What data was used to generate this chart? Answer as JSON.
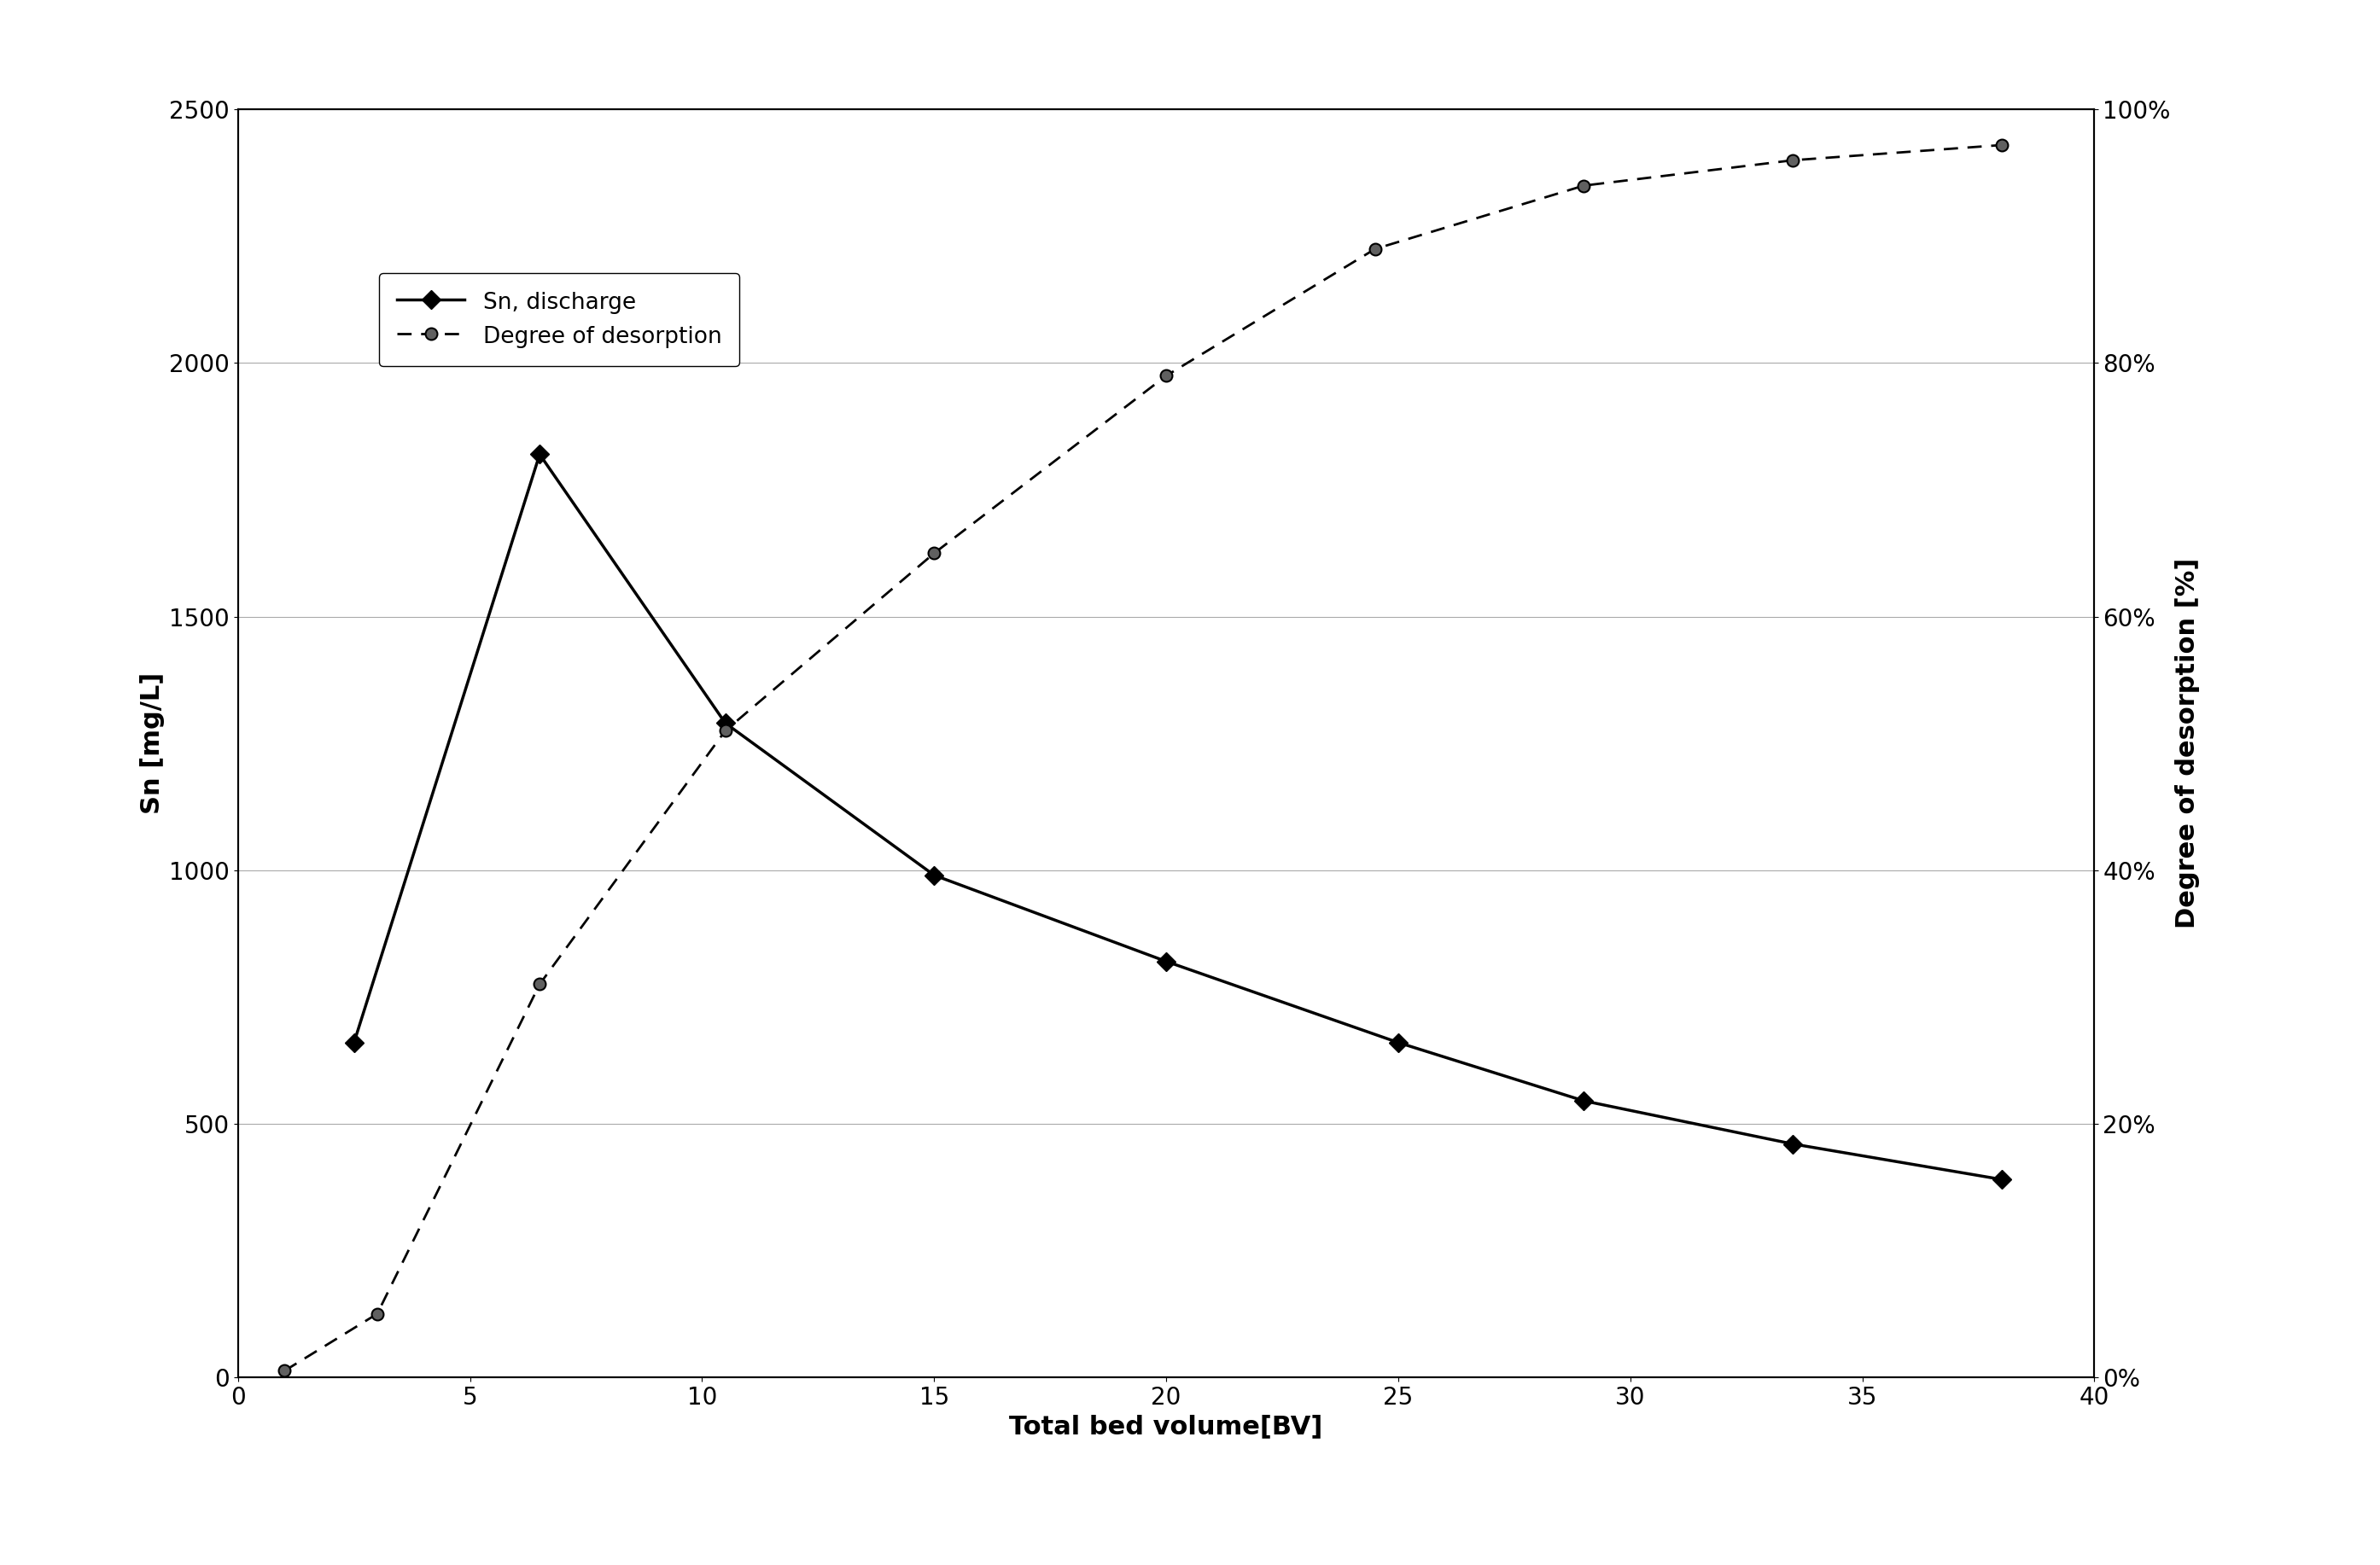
{
  "sn_discharge_x": [
    2.5,
    6.5,
    10.5,
    15,
    20,
    25,
    29,
    33.5,
    38
  ],
  "sn_discharge_y": [
    660,
    1820,
    1290,
    990,
    820,
    660,
    545,
    460,
    390
  ],
  "desorption_x": [
    1,
    3,
    6.5,
    10.5,
    15,
    20,
    24.5,
    29,
    33.5,
    38
  ],
  "desorption_y": [
    0.005,
    0.05,
    0.31,
    0.51,
    0.65,
    0.79,
    0.89,
    0.94,
    0.96,
    0.972
  ],
  "xlabel": "Total bed volume[BV]",
  "ylabel_left": "Sn [mg/L]",
  "ylabel_right": "Degree of desorption [%]",
  "xlim": [
    0,
    40
  ],
  "ylim_left": [
    0,
    2500
  ],
  "ylim_right": [
    0,
    1.0
  ],
  "xticks": [
    0,
    5,
    10,
    15,
    20,
    25,
    30,
    35,
    40
  ],
  "yticks_left": [
    0,
    500,
    1000,
    1500,
    2000,
    2500
  ],
  "yticks_right": [
    0.0,
    0.2,
    0.4,
    0.6,
    0.8,
    1.0
  ],
  "legend_sn": "Sn, discharge",
  "legend_desorption": "Degree of desorption",
  "line_color": "#000000",
  "bg_color": "#ffffff",
  "grid_color": "#aaaaaa",
  "label_fontsize": 22,
  "tick_fontsize": 20,
  "legend_fontsize": 19
}
